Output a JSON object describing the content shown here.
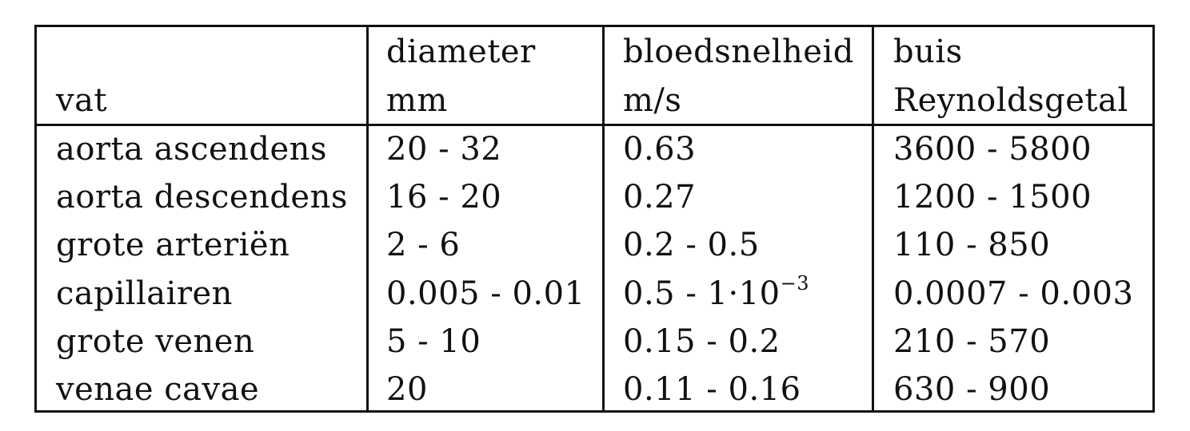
{
  "header": {
    "vat": "vat",
    "diameter_top": "diameter",
    "diameter_unit": "mm",
    "speed_top": "bloedsnelheid",
    "speed_unit": "m/s",
    "re_top": "buis",
    "re_bottom": "Reynoldsgetal"
  },
  "rows": [
    {
      "vat": "aorta ascendens",
      "diameter": "20 - 32",
      "speed": "0.63",
      "re": "3600 - 5800"
    },
    {
      "vat": "aorta descendens",
      "diameter": "16 - 20",
      "speed": "0.27",
      "re": "1200 - 1500"
    },
    {
      "vat": "grote arteriën",
      "diameter": "2 - 6",
      "speed": "0.2 - 0.5",
      "re": "110 - 850"
    },
    {
      "vat": "capillairen",
      "diameter": "0.005 - 0.01",
      "speed": "0.5 - 1·10",
      "speed_exp": "−3",
      "re": "0.0007 - 0.003"
    },
    {
      "vat": "grote venen",
      "diameter": "5 - 10",
      "speed": "0.15 - 0.2",
      "re": "210 - 570"
    },
    {
      "vat": "venae cavae",
      "diameter": "20",
      "speed": "0.11 - 0.16",
      "re": "630 - 900"
    }
  ]
}
